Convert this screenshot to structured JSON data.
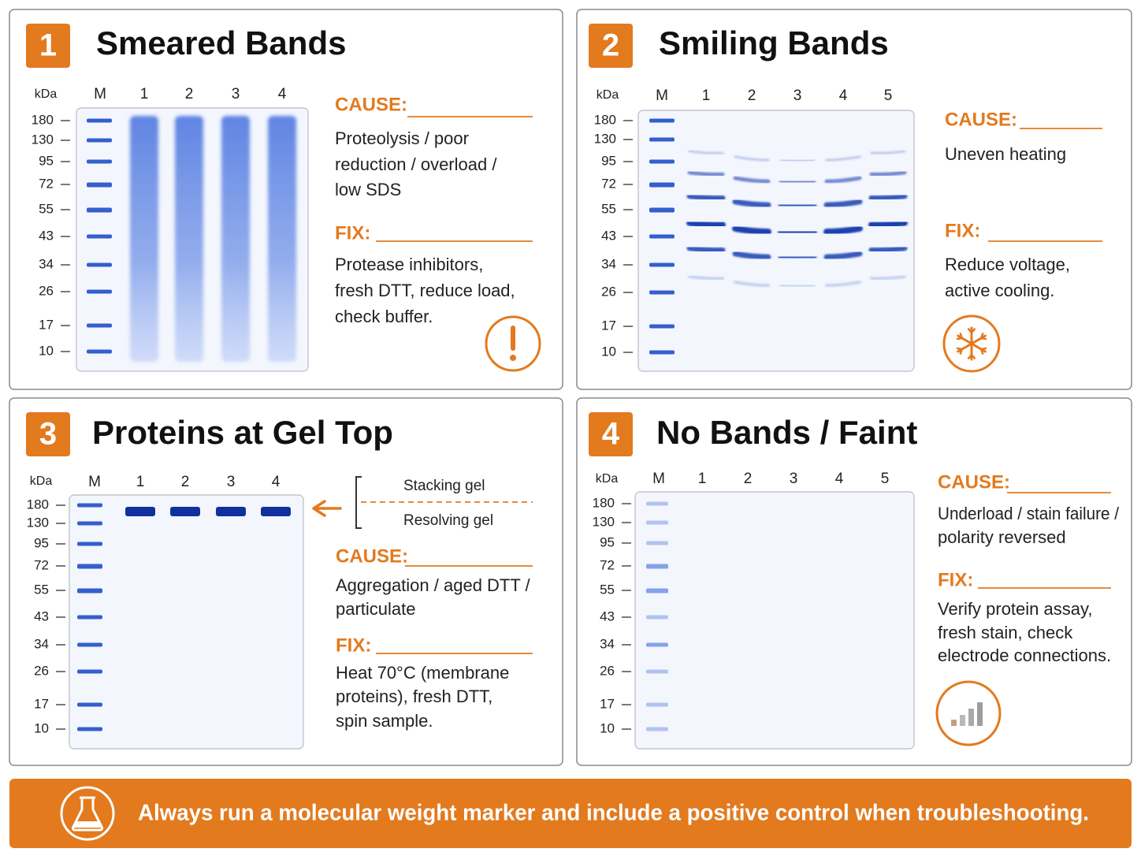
{
  "panels": [
    {
      "number": "1",
      "title": "Smeared Bands",
      "unit": "kDa",
      "lanes": [
        "M",
        "1",
        "2",
        "3",
        "4"
      ],
      "markers": [
        180,
        130,
        95,
        72,
        55,
        43,
        34,
        26,
        17,
        10
      ],
      "cause_label": "CAUSE:",
      "cause": [
        "Proteolysis / poor",
        "reduction / overload /",
        "low SDS"
      ],
      "fix_label": "FIX:",
      "fix": [
        "Protease inhibitors,",
        "fresh DTT, reduce load,",
        "check buffer."
      ]
    },
    {
      "number": "2",
      "title": "Smiling Bands",
      "unit": "kDa",
      "lanes": [
        "M",
        "1",
        "2",
        "3",
        "4",
        "5"
      ],
      "markers": [
        180,
        130,
        95,
        72,
        55,
        43,
        34,
        26,
        17,
        10
      ],
      "cause_label": "CAUSE:",
      "cause": [
        "Uneven heating"
      ],
      "fix_label": "FIX:",
      "fix": [
        "Reduce voltage,",
        "active cooling."
      ]
    },
    {
      "number": "3",
      "title": "Proteins at Gel Top",
      "unit": "kDa",
      "lanes": [
        "M",
        "1",
        "2",
        "3",
        "4"
      ],
      "markers": [
        180,
        130,
        95,
        72,
        55,
        43,
        34,
        26,
        17,
        10
      ],
      "gel_labels": [
        "Stacking gel",
        "Resolving gel"
      ],
      "cause_label": "CAUSE:",
      "cause": [
        "Aggregation / aged DTT /",
        "particulate"
      ],
      "fix_label": "FIX:",
      "fix": [
        "Heat 70°C (membrane",
        "proteins), fresh DTT,",
        "spin sample."
      ]
    },
    {
      "number": "4",
      "title": "No Bands / Faint",
      "unit": "kDa",
      "lanes": [
        "M",
        "1",
        "2",
        "3",
        "4",
        "5"
      ],
      "markers": [
        180,
        130,
        95,
        72,
        55,
        43,
        34,
        26,
        17,
        10
      ],
      "cause_label": "CAUSE:",
      "cause": [
        "Underload / stain failure /",
        "polarity reversed"
      ],
      "fix_label": "FIX:",
      "fix": [
        "Verify protein assay,",
        "fresh stain, check",
        "electrode connections."
      ]
    }
  ],
  "footer": {
    "text": "Always run a molecular weight marker and include a positive control when troubleshooting."
  }
}
